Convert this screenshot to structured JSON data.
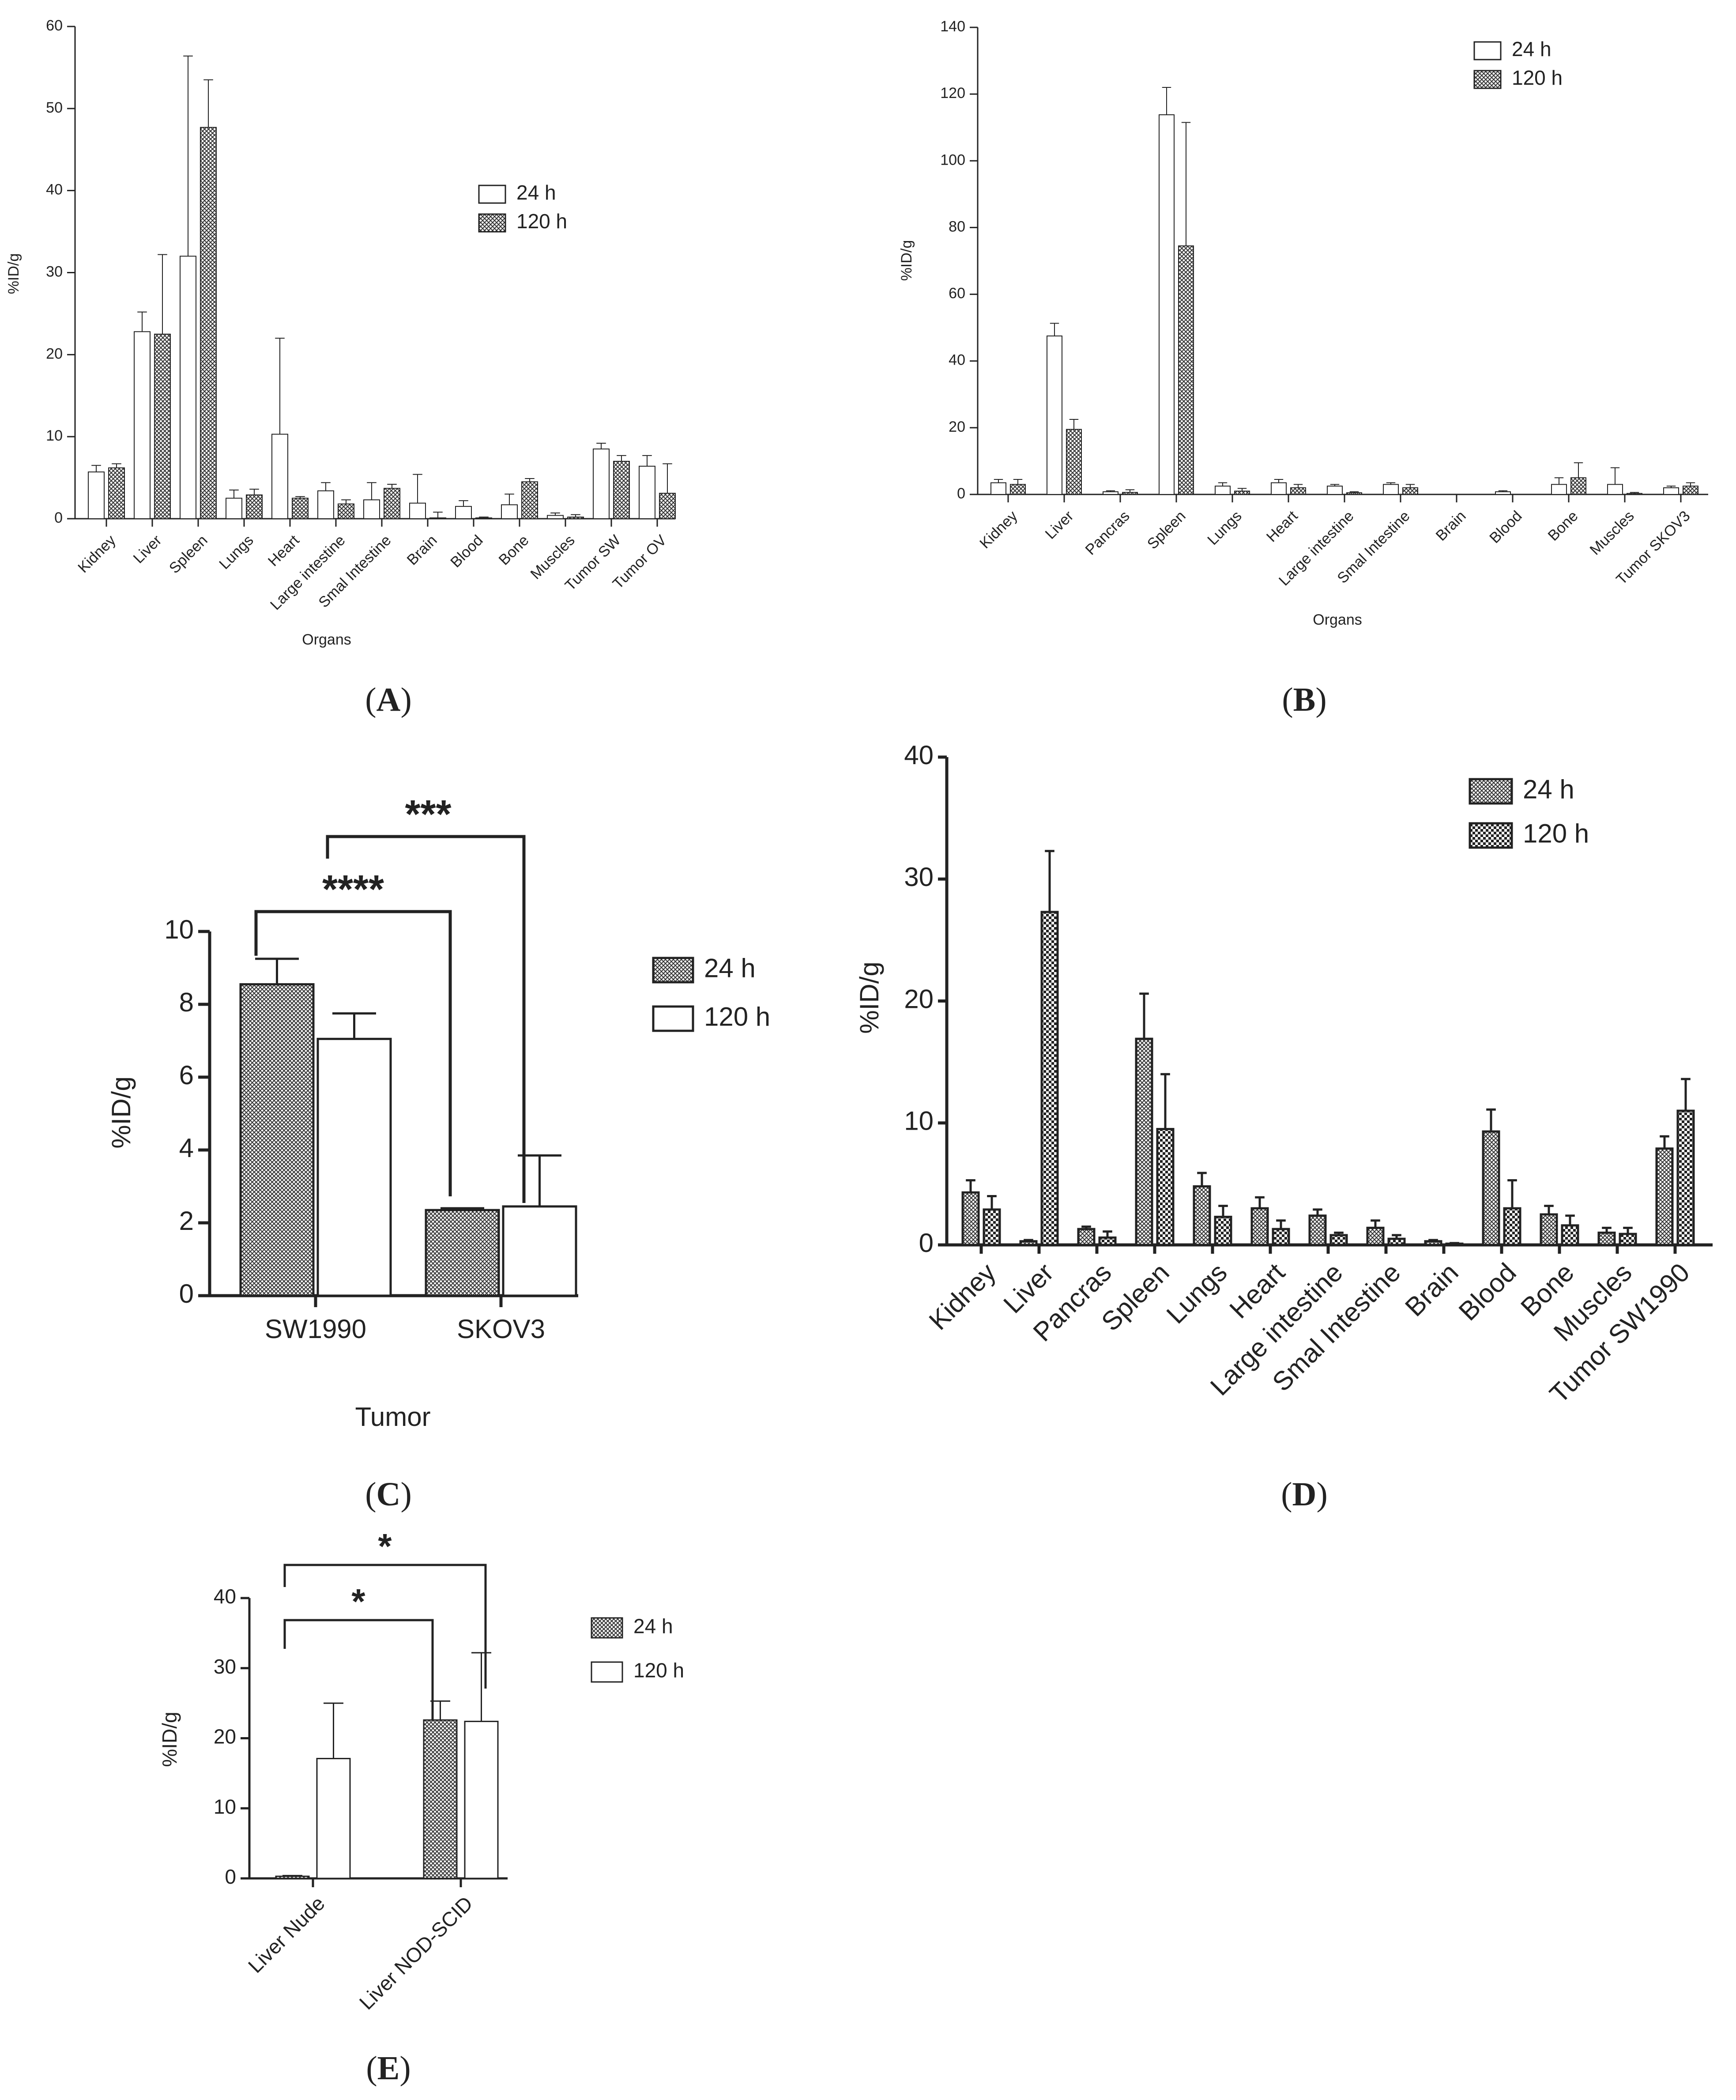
{
  "colors": {
    "ink": "#222222",
    "bg": "#ffffff"
  },
  "chart_data": [
    {
      "id": "A",
      "type": "bar",
      "panel_label": [
        "(",
        "A",
        ")"
      ],
      "xlabel": "Organs",
      "ylabel": "%ID/g",
      "ylim": [
        0,
        60
      ],
      "yticks": [
        0,
        10,
        20,
        30,
        40,
        50,
        60
      ],
      "legend": {
        "labels": [
          "24 h",
          "120 h"
        ]
      },
      "categories": [
        "Kidney",
        "Liver",
        "Spleen",
        "Lungs",
        "Heart",
        "Large intestine",
        "Smal Intestine",
        "Brain",
        "Blood",
        "Bone",
        "Muscles",
        "Tumor SW",
        "Tumor OV"
      ],
      "series": [
        {
          "name": "24 h",
          "fill": "open",
          "values": [
            5.7,
            22.8,
            32,
            2.5,
            10.3,
            3.4,
            2.3,
            1.9,
            1.5,
            1.7,
            0.4,
            8.5,
            6.4
          ],
          "errors": [
            0.8,
            2.4,
            24.4,
            1.0,
            11.7,
            1.0,
            2.1,
            3.5,
            0.7,
            1.3,
            0.3,
            0.7,
            1.3
          ]
        },
        {
          "name": "120 h",
          "fill": "hatch",
          "values": [
            6.2,
            22.5,
            47.7,
            2.9,
            2.5,
            1.8,
            3.7,
            0.1,
            0.1,
            4.5,
            0.2,
            7.0,
            3.1
          ],
          "errors": [
            0.5,
            9.7,
            5.8,
            0.7,
            0.2,
            0.5,
            0.5,
            0.7,
            0.1,
            0.4,
            0.3,
            0.7,
            3.6
          ]
        }
      ]
    },
    {
      "id": "B",
      "type": "bar",
      "panel_label": [
        "(",
        "B",
        ")"
      ],
      "xlabel": "Organs",
      "ylabel": "%ID/g",
      "ylim": [
        0,
        140
      ],
      "yticks": [
        0,
        20,
        40,
        60,
        80,
        100,
        120,
        140
      ],
      "legend": {
        "labels": [
          "24 h",
          "120 h"
        ]
      },
      "categories": [
        "Kidney",
        "Liver",
        "Pancras",
        "Spleen",
        "Lungs",
        "Heart",
        "Large intestine",
        "Smal Intestine",
        "Brain",
        "Blood",
        "Bone",
        "Muscles",
        "Tumor SKOV3"
      ],
      "series": [
        {
          "name": "24 h",
          "fill": "open",
          "values": [
            3.5,
            47.5,
            0.8,
            113.8,
            2.5,
            3.5,
            2.5,
            3.0,
            0,
            0.8,
            3.0,
            3.0,
            2.0
          ],
          "errors": [
            1.0,
            3.8,
            0.3,
            8.2,
            1.0,
            1.0,
            0.5,
            0.5,
            0,
            0.3,
            2.0,
            5.0,
            0.5
          ]
        },
        {
          "name": "120 h",
          "fill": "hatch",
          "values": [
            3.0,
            19.5,
            0.6,
            74.5,
            1.0,
            2.0,
            0.5,
            2.0,
            0,
            0,
            5.0,
            0.3,
            2.5
          ],
          "errors": [
            1.5,
            3.0,
            0.8,
            37.0,
            0.8,
            1.0,
            0.3,
            1.0,
            0,
            0,
            4.5,
            0.3,
            1.0
          ]
        }
      ]
    },
    {
      "id": "C",
      "type": "bar",
      "panel_label": [
        "(",
        "C",
        ")"
      ],
      "xlabel": "Tumor",
      "ylabel": "%ID/g",
      "ylim": [
        0,
        10
      ],
      "yticks": [
        0,
        2,
        4,
        6,
        8,
        10
      ],
      "legend": {
        "labels": [
          "24 h",
          "120 h"
        ]
      },
      "categories": [
        "SW1990",
        "SKOV3"
      ],
      "series": [
        {
          "name": "24 h",
          "fill": "hatch",
          "values": [
            8.55,
            2.35
          ],
          "errors": [
            0.7,
            0.05
          ]
        },
        {
          "name": "120 h",
          "fill": "open",
          "values": [
            7.05,
            2.45
          ],
          "errors": [
            0.7,
            1.4
          ]
        }
      ],
      "annotations": [
        "****",
        "***"
      ]
    },
    {
      "id": "D",
      "type": "bar",
      "panel_label": [
        "(",
        "D",
        ")"
      ],
      "xlabel": "",
      "ylabel": "%ID/g",
      "ylim": [
        0,
        40
      ],
      "yticks": [
        0,
        10,
        20,
        30,
        40
      ],
      "legend": {
        "labels": [
          "24 h",
          "120 h"
        ]
      },
      "categories": [
        "Kidney",
        "Liver",
        "Pancras",
        "Spleen",
        "Lungs",
        "Heart",
        "Large intestine",
        "Smal Intestine",
        "Brain",
        "Blood",
        "Bone",
        "Muscles",
        "Tumor SW1990"
      ],
      "series": [
        {
          "name": "24 h",
          "fill": "hatch",
          "values": [
            4.3,
            0.3,
            1.3,
            16.9,
            4.8,
            3.0,
            2.4,
            1.4,
            0.3,
            9.3,
            2.5,
            1.0,
            7.9
          ],
          "errors": [
            1.0,
            0.1,
            0.2,
            3.7,
            1.1,
            0.9,
            0.5,
            0.6,
            0.1,
            1.8,
            0.7,
            0.4,
            1.0
          ]
        },
        {
          "name": "120 h",
          "fill": "dots",
          "values": [
            2.9,
            27.3,
            0.6,
            9.5,
            2.3,
            1.3,
            0.8,
            0.5,
            0.1,
            3.0,
            1.6,
            0.9,
            11.0
          ],
          "errors": [
            1.1,
            5.0,
            0.5,
            4.5,
            0.9,
            0.7,
            0.2,
            0.3,
            0.05,
            2.3,
            0.8,
            0.5,
            2.6
          ]
        }
      ]
    },
    {
      "id": "E",
      "type": "bar",
      "panel_label": [
        "(",
        "E",
        ")"
      ],
      "xlabel": "",
      "ylabel": "%ID/g",
      "ylim": [
        0,
        40
      ],
      "yticks": [
        0,
        10,
        20,
        30,
        40
      ],
      "legend": {
        "labels": [
          "24 h",
          "120 h"
        ]
      },
      "categories": [
        "Liver Nude",
        "Liver NOD-SCID"
      ],
      "series": [
        {
          "name": "24 h",
          "fill": "hatch",
          "values": [
            0.3,
            22.6
          ],
          "errors": [
            0.1,
            2.7
          ]
        },
        {
          "name": "120 h",
          "fill": "open",
          "values": [
            17.1,
            22.4
          ],
          "errors": [
            7.9,
            9.8
          ]
        }
      ],
      "annotations": [
        "*",
        "*"
      ]
    }
  ]
}
